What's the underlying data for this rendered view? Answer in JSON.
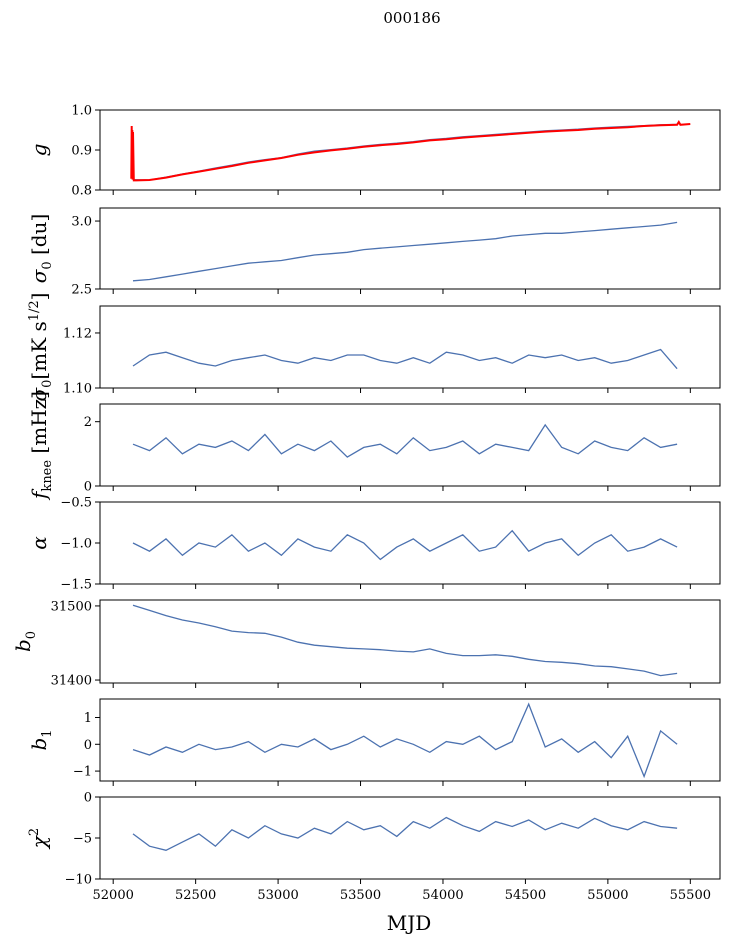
{
  "chart_data": {
    "type": "line",
    "title": "000186",
    "xlabel": "MJD",
    "xlim": [
      51920,
      55680
    ],
    "xticks": [
      52000,
      52500,
      53000,
      53500,
      54000,
      54500,
      55000,
      55500
    ],
    "xtick_labels": [
      "52000",
      "52500",
      "53000",
      "53500",
      "54000",
      "54500",
      "55000",
      "55500"
    ],
    "x": [
      52120,
      52220,
      52320,
      52420,
      52520,
      52620,
      52720,
      52820,
      52920,
      53020,
      53120,
      53220,
      53320,
      53420,
      53520,
      53620,
      53720,
      53820,
      53920,
      54020,
      54120,
      54220,
      54320,
      54420,
      54520,
      54620,
      54720,
      54820,
      54920,
      55020,
      55120,
      55220,
      55320,
      55420
    ],
    "series_color": "#4c72b0",
    "panels": [
      {
        "ylabel": {
          "main": "g",
          "sub": "",
          "sup": "",
          "tail": ""
        },
        "ylim": [
          0.8,
          1.0
        ],
        "yticks": [
          0.8,
          0.9,
          1.0
        ],
        "ytick_labels": [
          "0.8",
          "0.9",
          "1.0"
        ],
        "values": [
          0.826,
          0.825,
          0.832,
          0.84,
          0.847,
          0.855,
          0.862,
          0.87,
          0.876,
          0.881,
          0.89,
          0.897,
          0.901,
          0.905,
          0.91,
          0.914,
          0.917,
          0.921,
          0.926,
          0.929,
          0.933,
          0.936,
          0.939,
          0.942,
          0.945,
          0.948,
          0.95,
          0.952,
          0.955,
          0.957,
          0.959,
          0.961,
          0.963,
          0.964
        ],
        "overlay": {
          "color": "#ff0000",
          "x": [
            52110,
            52112,
            52114,
            52116,
            52118,
            52120,
            52125,
            52140,
            52220,
            52320,
            52420,
            52520,
            52620,
            52720,
            52820,
            52920,
            53020,
            53120,
            53220,
            53320,
            53420,
            53520,
            53620,
            53720,
            53820,
            53920,
            54020,
            54120,
            54220,
            54320,
            54420,
            54520,
            54620,
            54720,
            54820,
            54920,
            55020,
            55120,
            55220,
            55320,
            55420,
            55430,
            55440,
            55500
          ],
          "values": [
            0.828,
            0.96,
            0.83,
            0.95,
            0.826,
            0.945,
            0.824,
            0.824,
            0.825,
            0.831,
            0.839,
            0.846,
            0.853,
            0.86,
            0.868,
            0.874,
            0.88,
            0.888,
            0.894,
            0.899,
            0.903,
            0.908,
            0.912,
            0.915,
            0.919,
            0.924,
            0.927,
            0.931,
            0.934,
            0.937,
            0.94,
            0.943,
            0.946,
            0.948,
            0.95,
            0.953,
            0.955,
            0.957,
            0.96,
            0.962,
            0.963,
            0.97,
            0.963,
            0.965
          ]
        }
      },
      {
        "ylabel": {
          "main": "σ",
          "sub": "0",
          "sup": "",
          "tail": " [du]"
        },
        "ylim": [
          2.5,
          3.096
        ],
        "yticks": [
          2.5,
          3.0
        ],
        "ytick_labels": [
          "2.5",
          "3.0"
        ],
        "values": [
          2.56,
          2.57,
          2.59,
          2.61,
          2.63,
          2.65,
          2.67,
          2.69,
          2.7,
          2.71,
          2.73,
          2.75,
          2.76,
          2.77,
          2.79,
          2.8,
          2.81,
          2.82,
          2.83,
          2.84,
          2.85,
          2.86,
          2.87,
          2.89,
          2.9,
          2.91,
          2.91,
          2.92,
          2.93,
          2.94,
          2.95,
          2.96,
          2.97,
          2.99
        ]
      },
      {
        "ylabel": {
          "main": "σ",
          "sub": "0",
          "sup": "1/2",
          "tail": "[mK s",
          "close": "]"
        },
        "ylim": [
          1.1,
          1.1298
        ],
        "yticks": [
          1.1,
          1.12
        ],
        "ytick_labels": [
          "1.10",
          "1.12"
        ],
        "values": [
          1.108,
          1.112,
          1.113,
          1.111,
          1.109,
          1.108,
          1.11,
          1.111,
          1.112,
          1.11,
          1.109,
          1.111,
          1.11,
          1.112,
          1.112,
          1.11,
          1.109,
          1.111,
          1.109,
          1.113,
          1.112,
          1.11,
          1.111,
          1.109,
          1.112,
          1.111,
          1.112,
          1.11,
          1.111,
          1.109,
          1.11,
          1.112,
          1.114,
          1.107
        ]
      },
      {
        "ylabel": {
          "main": "f",
          "sub": "knee",
          "sup": "",
          "tail": " [mHz]"
        },
        "ylim": [
          0,
          2.55
        ],
        "yticks": [
          0,
          2
        ],
        "ytick_labels": [
          "0",
          "2"
        ],
        "values": [
          1.3,
          1.1,
          1.5,
          1.0,
          1.3,
          1.2,
          1.4,
          1.1,
          1.6,
          1.0,
          1.3,
          1.1,
          1.4,
          0.9,
          1.2,
          1.3,
          1.0,
          1.5,
          1.1,
          1.2,
          1.4,
          1.0,
          1.3,
          1.2,
          1.1,
          1.9,
          1.2,
          1.0,
          1.4,
          1.2,
          1.1,
          1.5,
          1.2,
          1.3
        ]
      },
      {
        "ylabel": {
          "main": "α",
          "sub": "",
          "sup": "",
          "tail": ""
        },
        "ylim": [
          -1.5,
          -0.5
        ],
        "yticks": [
          -1.5,
          -1.0,
          -0.5
        ],
        "ytick_labels": [
          "−1.5",
          "−1.0",
          "−0.5"
        ],
        "values": [
          -1.0,
          -1.1,
          -0.95,
          -1.15,
          -1.0,
          -1.05,
          -0.9,
          -1.1,
          -1.0,
          -1.15,
          -0.95,
          -1.05,
          -1.1,
          -0.9,
          -1.0,
          -1.2,
          -1.05,
          -0.95,
          -1.1,
          -1.0,
          -0.9,
          -1.1,
          -1.05,
          -0.85,
          -1.1,
          -1.0,
          -0.95,
          -1.15,
          -1.0,
          -0.9,
          -1.1,
          -1.05,
          -0.95,
          -1.05
        ]
      },
      {
        "ylabel": {
          "main": "b",
          "sub": "0",
          "sup": "",
          "tail": ""
        },
        "ylim": [
          31396,
          31508
        ],
        "yticks": [
          31400,
          31500
        ],
        "ytick_labels": [
          "31400",
          "31500"
        ],
        "values": [
          31501,
          31494,
          31487,
          31481,
          31477,
          31472,
          31466,
          31464,
          31463,
          31458,
          31451,
          31447,
          31445,
          31443,
          31442,
          31441,
          31439,
          31438,
          31442,
          31436,
          31433,
          31433,
          31434,
          31432,
          31428,
          31425,
          31424,
          31422,
          31419,
          31418,
          31415,
          31412,
          31406,
          31409
        ]
      },
      {
        "ylabel": {
          "main": "b",
          "sub": "1",
          "sup": "",
          "tail": ""
        },
        "ylim": [
          -1.37,
          1.69
        ],
        "yticks": [
          -1,
          0,
          1
        ],
        "ytick_labels": [
          "−1",
          "0",
          "1"
        ],
        "values": [
          -0.2,
          -0.4,
          -0.1,
          -0.3,
          0.0,
          -0.2,
          -0.1,
          0.1,
          -0.3,
          0.0,
          -0.1,
          0.2,
          -0.2,
          0.0,
          0.3,
          -0.1,
          0.2,
          0.0,
          -0.3,
          0.1,
          0.0,
          0.3,
          -0.2,
          0.1,
          1.5,
          -0.1,
          0.2,
          -0.3,
          0.1,
          -0.5,
          0.3,
          -1.2,
          0.5,
          0.0
        ]
      },
      {
        "ylabel": {
          "main": "χ",
          "sub": "",
          "sup": "2",
          "tail": ""
        },
        "ylim": [
          -10,
          0
        ],
        "yticks": [
          -10,
          -5,
          0
        ],
        "ytick_labels": [
          "−10",
          "−5",
          "0"
        ],
        "values": [
          -4.5,
          -6.0,
          -6.5,
          -5.5,
          -4.5,
          -6.0,
          -4.0,
          -5.0,
          -3.5,
          -4.5,
          -5.0,
          -3.8,
          -4.5,
          -3.0,
          -4.0,
          -3.5,
          -4.8,
          -3.0,
          -3.8,
          -2.5,
          -3.5,
          -4.2,
          -3.0,
          -3.6,
          -2.8,
          -4.0,
          -3.2,
          -3.8,
          -2.6,
          -3.5,
          -4.0,
          -3.0,
          -3.6,
          -3.8
        ]
      }
    ]
  }
}
